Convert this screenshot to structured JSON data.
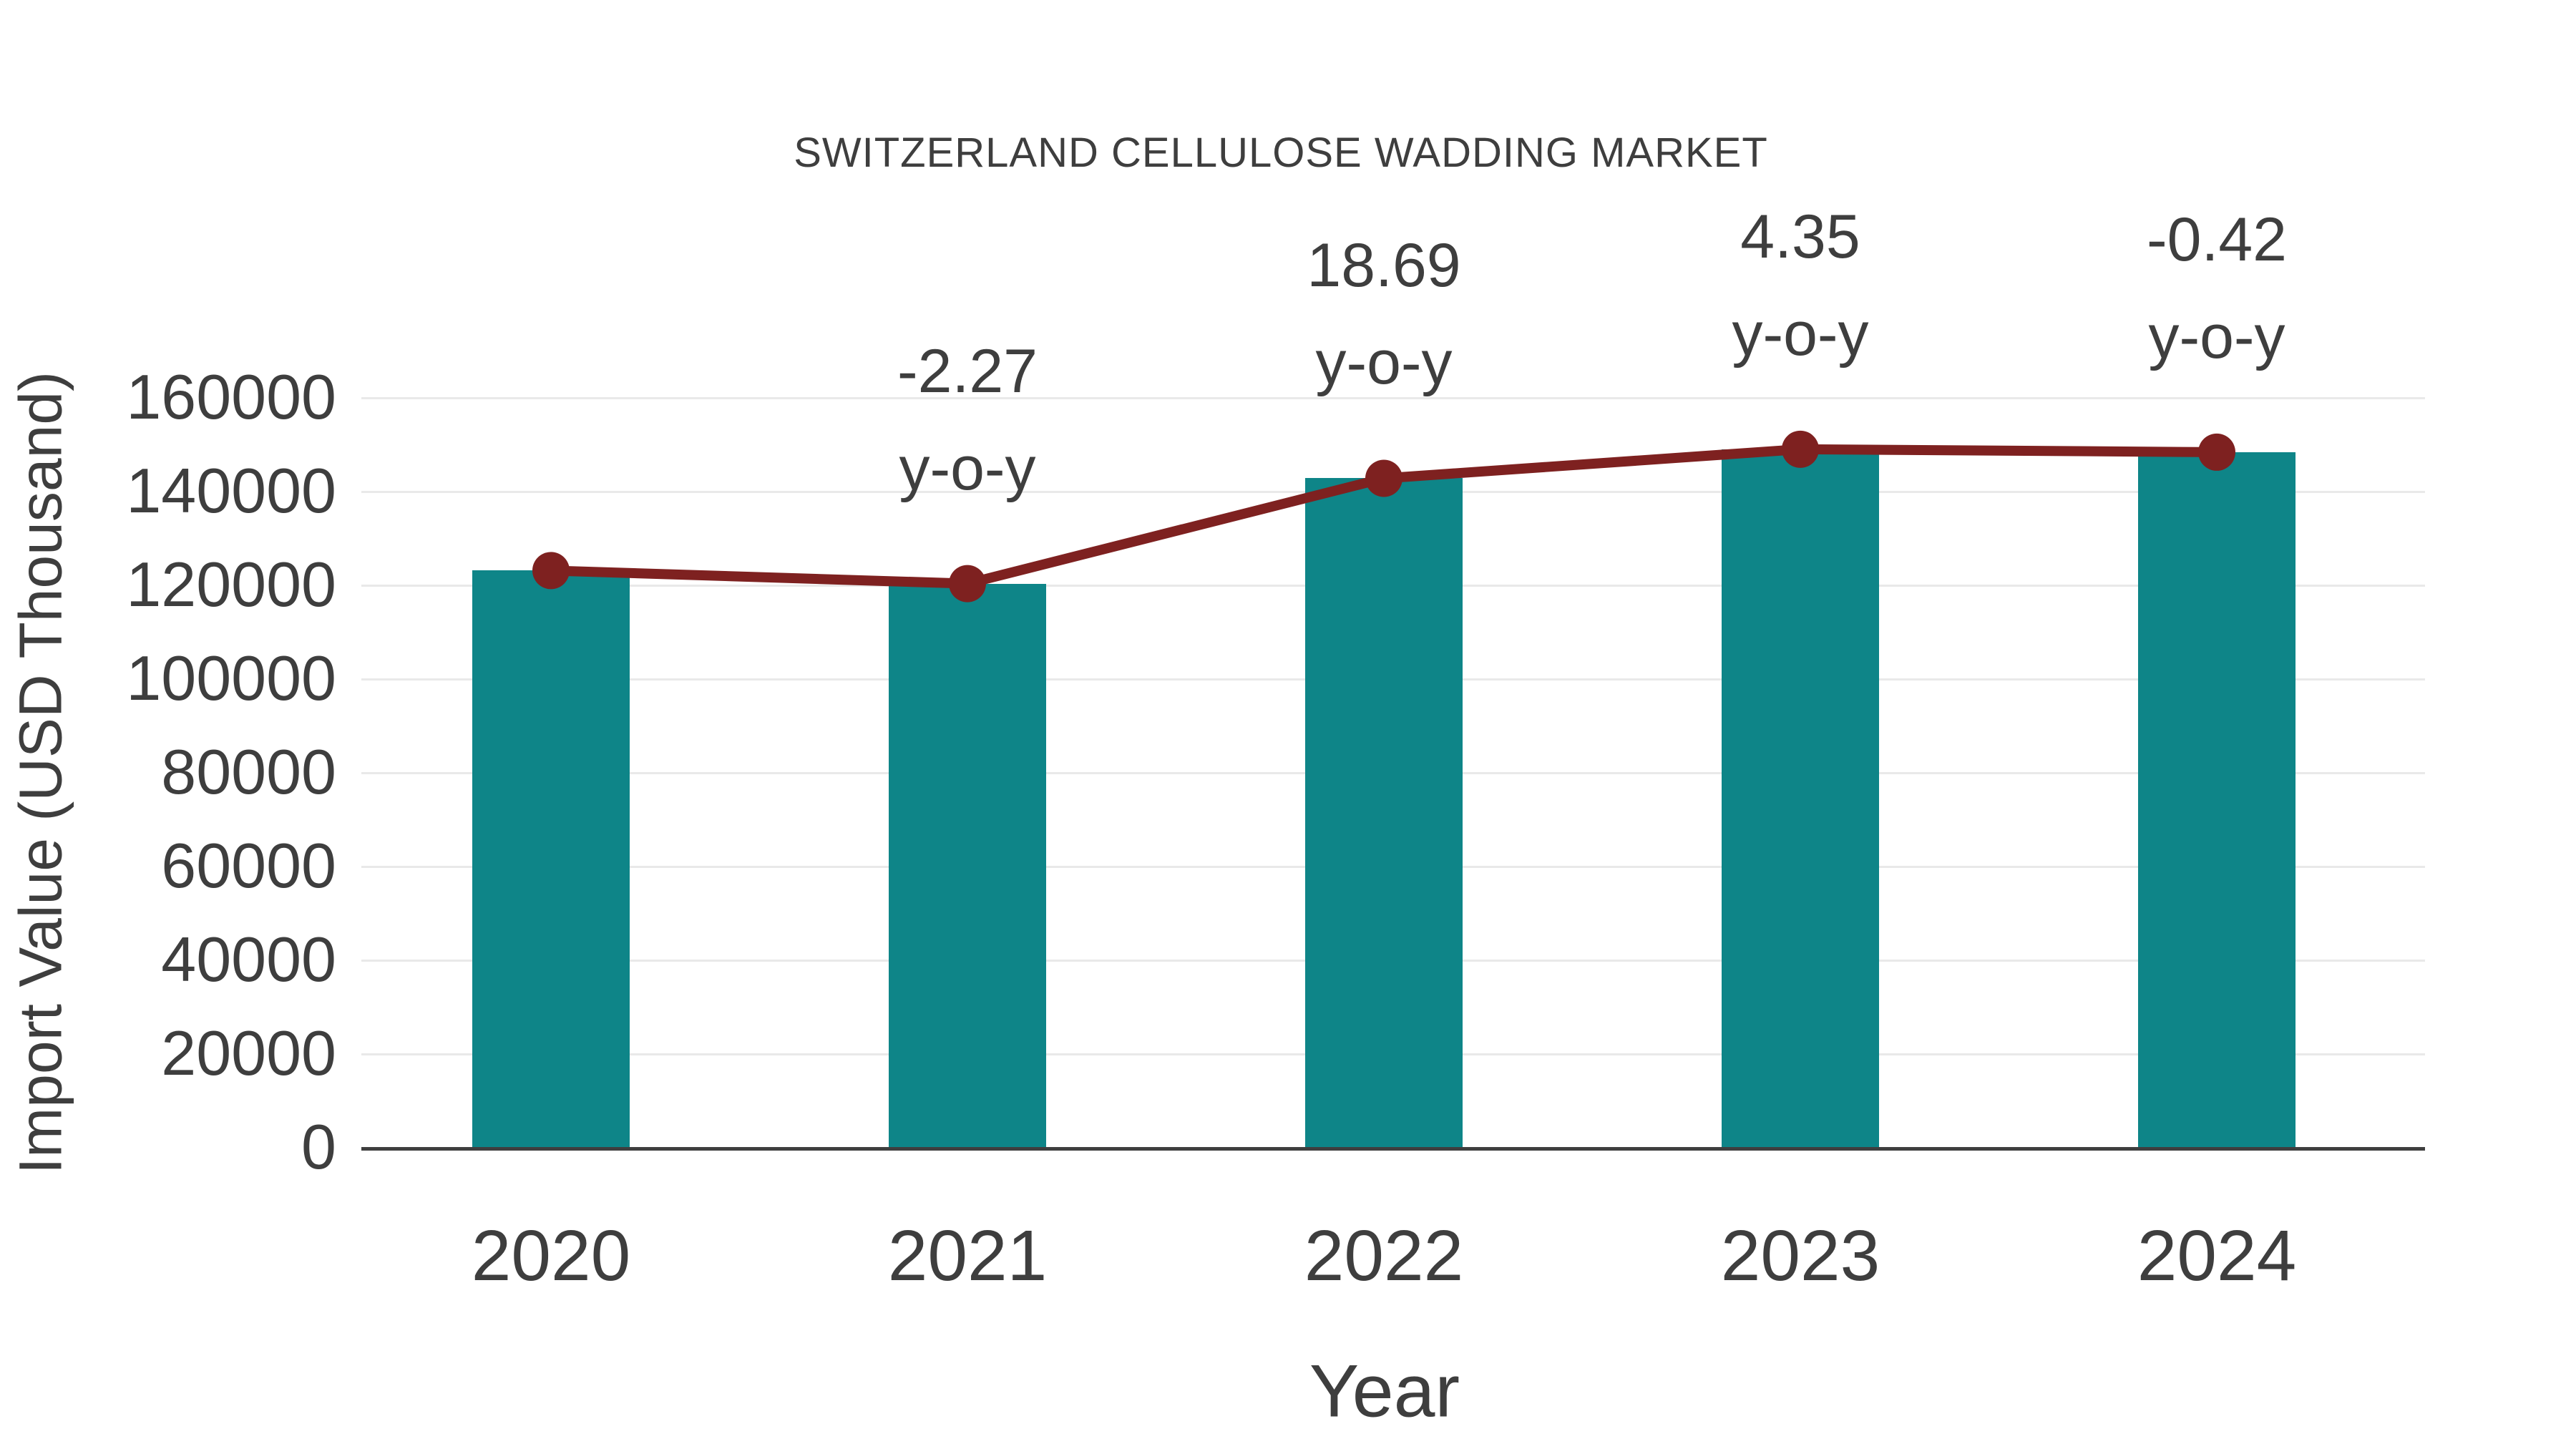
{
  "chart_data": {
    "type": "bar",
    "title": "SWITZERLAND CELLULOSE WADDING MARKET",
    "xlabel": "Year",
    "ylabel": "Import Value (USD Thousand)",
    "categories": [
      "2020",
      "2021",
      "2022",
      "2023",
      "2024"
    ],
    "series": [
      {
        "name": "Import Value bars",
        "type": "bar",
        "values": [
          123000,
          120208,
          142675,
          148881,
          148256
        ]
      },
      {
        "name": "Import Value trend line",
        "type": "line",
        "values": [
          123000,
          120208,
          142675,
          148881,
          148256
        ]
      }
    ],
    "annotations": [
      {
        "category": "2021",
        "value_label": "-2.27",
        "suffix": "y-o-y"
      },
      {
        "category": "2022",
        "value_label": "18.69",
        "suffix": "y-o-y"
      },
      {
        "category": "2023",
        "value_label": "4.35",
        "suffix": "y-o-y"
      },
      {
        "category": "2024",
        "value_label": "-0.42",
        "suffix": "y-o-y"
      }
    ],
    "y_ticks": [
      0,
      20000,
      40000,
      60000,
      80000,
      100000,
      120000,
      140000,
      160000
    ],
    "ylim": [
      0,
      162000
    ],
    "grid": true,
    "legend_position": "none",
    "colors": {
      "bar": "#0e8588",
      "line": "#7e2120",
      "text": "#3e3e3e",
      "grid": "#e9e9e9",
      "axis": "#3f3f3f",
      "background": "#ffffff"
    }
  }
}
